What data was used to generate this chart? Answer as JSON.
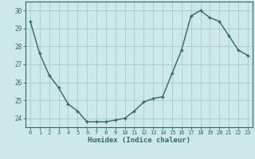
{
  "x": [
    0,
    1,
    2,
    3,
    4,
    5,
    6,
    7,
    8,
    9,
    10,
    11,
    12,
    13,
    14,
    15,
    16,
    17,
    18,
    19,
    20,
    21,
    22,
    23
  ],
  "y": [
    29.4,
    27.6,
    26.4,
    25.7,
    24.8,
    24.4,
    23.8,
    23.8,
    23.8,
    23.9,
    24.0,
    24.4,
    24.9,
    25.1,
    25.2,
    26.5,
    27.8,
    29.7,
    30.0,
    29.6,
    29.4,
    28.6,
    27.8,
    27.5
  ],
  "line_color": "#2e6b5e",
  "marker": "+",
  "bg_color": "#cce8e8",
  "grid_color": "#aacece",
  "xlabel": "Humidex (Indice chaleur)",
  "ylim": [
    23.5,
    30.5
  ],
  "yticks": [
    24,
    25,
    26,
    27,
    28,
    29,
    30
  ],
  "xticks": [
    0,
    1,
    2,
    3,
    4,
    5,
    6,
    7,
    8,
    9,
    10,
    11,
    12,
    13,
    14,
    15,
    16,
    17,
    18,
    19,
    20,
    21,
    22,
    23
  ],
  "axis_color": "#2e6b5e",
  "tick_color": "#2e6b5e",
  "label_color": "#2e6b5e",
  "linewidth": 1.0,
  "markersize": 3.5
}
